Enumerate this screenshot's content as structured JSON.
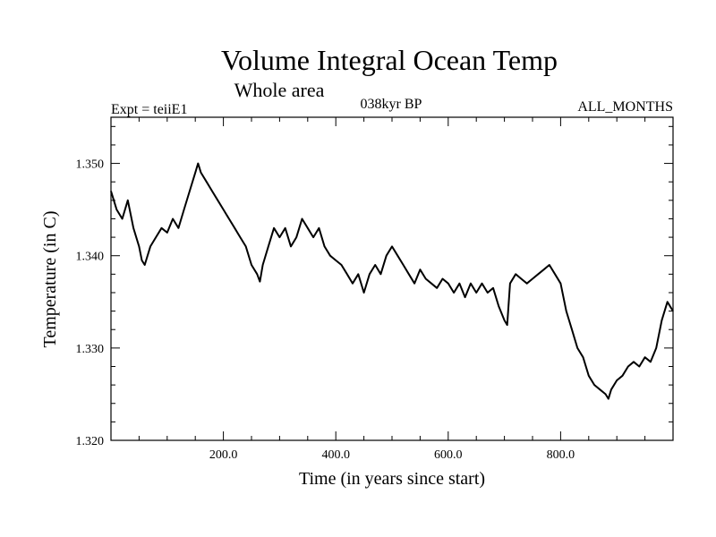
{
  "chart_data": {
    "type": "line",
    "title": "Volume Integral Ocean Temp",
    "subtitle": "Whole area",
    "header": {
      "experiment": "Expt = teiiE1",
      "period": "038kyr BP",
      "months": "ALL_MONTHS"
    },
    "xlabel": "Time (in years since start)",
    "ylabel": "Temperature (in C)",
    "xlim": [
      0,
      1000
    ],
    "ylim": [
      1.32,
      1.355
    ],
    "xticks_major": [
      200,
      400,
      600,
      800
    ],
    "xtick_labels": [
      "200.0",
      "400.0",
      "600.0",
      "800.0"
    ],
    "xticks_minor": [
      50,
      100,
      150,
      250,
      300,
      350,
      450,
      500,
      550,
      650,
      700,
      750,
      850,
      900,
      950
    ],
    "yticks_major": [
      1.32,
      1.33,
      1.34,
      1.35
    ],
    "ytick_labels": [
      "1.320",
      "1.330",
      "1.340",
      "1.350"
    ],
    "yticks_minor": [
      1.322,
      1.324,
      1.326,
      1.328,
      1.332,
      1.334,
      1.336,
      1.338,
      1.342,
      1.344,
      1.346,
      1.348,
      1.352,
      1.354
    ],
    "grid": false,
    "series": [
      {
        "color": "#000000",
        "x": [
          0,
          10,
          20,
          30,
          40,
          50,
          55,
          60,
          70,
          80,
          90,
          100,
          110,
          120,
          130,
          140,
          150,
          155,
          160,
          170,
          180,
          190,
          200,
          210,
          220,
          230,
          240,
          250,
          260,
          265,
          270,
          280,
          290,
          300,
          310,
          320,
          330,
          340,
          350,
          360,
          370,
          380,
          390,
          400,
          410,
          420,
          430,
          440,
          450,
          460,
          470,
          480,
          490,
          500,
          510,
          520,
          530,
          540,
          550,
          560,
          570,
          580,
          590,
          600,
          610,
          620,
          630,
          640,
          650,
          660,
          670,
          680,
          690,
          700,
          705,
          710,
          720,
          730,
          740,
          750,
          760,
          770,
          780,
          790,
          800,
          810,
          820,
          830,
          840,
          850,
          860,
          870,
          880,
          885,
          890,
          900,
          910,
          920,
          930,
          940,
          950,
          960,
          970,
          980,
          990,
          1000
        ],
        "y": [
          1.347,
          1.345,
          1.344,
          1.346,
          1.343,
          1.341,
          1.3395,
          1.339,
          1.341,
          1.342,
          1.343,
          1.3425,
          1.344,
          1.343,
          1.345,
          1.347,
          1.349,
          1.35,
          1.349,
          1.348,
          1.347,
          1.346,
          1.345,
          1.344,
          1.343,
          1.342,
          1.341,
          1.339,
          1.338,
          1.3372,
          1.339,
          1.341,
          1.343,
          1.342,
          1.343,
          1.341,
          1.342,
          1.344,
          1.343,
          1.342,
          1.343,
          1.341,
          1.34,
          1.3395,
          1.339,
          1.338,
          1.337,
          1.338,
          1.336,
          1.338,
          1.339,
          1.338,
          1.34,
          1.341,
          1.34,
          1.339,
          1.338,
          1.337,
          1.3385,
          1.3375,
          1.337,
          1.3365,
          1.3375,
          1.337,
          1.336,
          1.337,
          1.3355,
          1.337,
          1.336,
          1.337,
          1.336,
          1.3365,
          1.3345,
          1.333,
          1.3325,
          1.337,
          1.338,
          1.3375,
          1.337,
          1.3375,
          1.338,
          1.3385,
          1.339,
          1.338,
          1.337,
          1.334,
          1.332,
          1.33,
          1.329,
          1.327,
          1.326,
          1.3255,
          1.325,
          1.3245,
          1.3255,
          1.3265,
          1.327,
          1.328,
          1.3285,
          1.328,
          1.329,
          1.3285,
          1.33,
          1.333,
          1.335,
          1.334
        ]
      }
    ]
  }
}
